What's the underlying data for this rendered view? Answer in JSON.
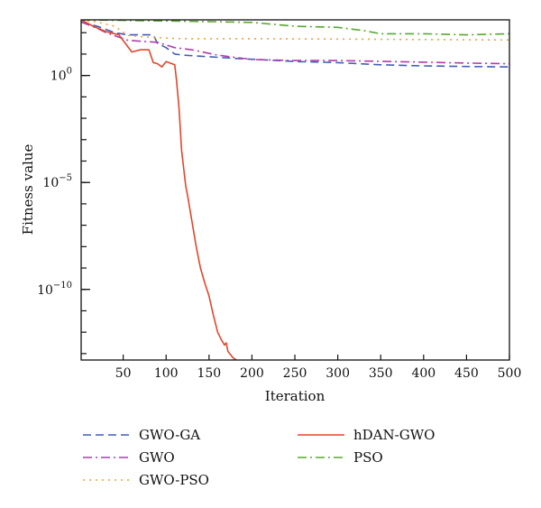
{
  "chart_data": {
    "type": "line",
    "xlabel": "Iteration",
    "ylabel": "Fitness value",
    "xlim": [
      1,
      500
    ],
    "ylim_log10": [
      -13.3,
      2.6
    ],
    "y_scale": "log",
    "grid": false,
    "legend_position": "bottom",
    "x_ticks": [
      50,
      100,
      150,
      200,
      250,
      300,
      350,
      400,
      450,
      500
    ],
    "x_tick_labels": [
      "50",
      "100",
      "150",
      "200",
      "250",
      "300",
      "350",
      "400",
      "450",
      "500"
    ],
    "y_ticks": [
      {
        "log10": 0,
        "base": "10",
        "exp": "0"
      },
      {
        "log10": -5,
        "base": "10",
        "exp": "−5"
      },
      {
        "log10": -10,
        "base": "10",
        "exp": "−10"
      }
    ],
    "series": [
      {
        "name": "GWO-GA",
        "color": "#3f5fb5",
        "dash": "9,5",
        "points_log10": [
          [
            1,
            2.5
          ],
          [
            20,
            2.3
          ],
          [
            40,
            2.0
          ],
          [
            55,
            1.9
          ],
          [
            85,
            1.9
          ],
          [
            90,
            1.5
          ],
          [
            100,
            1.3
          ],
          [
            110,
            1.0
          ],
          [
            120,
            0.95
          ],
          [
            140,
            0.9
          ],
          [
            160,
            0.85
          ],
          [
            180,
            0.8
          ],
          [
            220,
            0.72
          ],
          [
            250,
            0.65
          ],
          [
            300,
            0.6
          ],
          [
            350,
            0.5
          ],
          [
            400,
            0.45
          ],
          [
            450,
            0.42
          ],
          [
            500,
            0.4
          ]
        ]
      },
      {
        "name": "GWO",
        "color": "#b13dab",
        "dash": "10,4,2,4",
        "points_log10": [
          [
            1,
            2.5
          ],
          [
            20,
            2.2
          ],
          [
            30,
            2.0
          ],
          [
            55,
            1.65
          ],
          [
            70,
            1.6
          ],
          [
            90,
            1.55
          ],
          [
            110,
            1.3
          ],
          [
            130,
            1.2
          ],
          [
            160,
            0.95
          ],
          [
            200,
            0.75
          ],
          [
            250,
            0.7
          ],
          [
            300,
            0.7
          ],
          [
            350,
            0.66
          ],
          [
            400,
            0.62
          ],
          [
            450,
            0.58
          ],
          [
            500,
            0.55
          ]
        ]
      },
      {
        "name": "GWO-PSO",
        "color": "#f2a13a",
        "dash": "2,5",
        "points_log10": [
          [
            1,
            2.58
          ],
          [
            20,
            2.5
          ],
          [
            40,
            2.3
          ],
          [
            55,
            1.88
          ],
          [
            80,
            1.78
          ],
          [
            120,
            1.72
          ],
          [
            200,
            1.72
          ],
          [
            300,
            1.7
          ],
          [
            400,
            1.68
          ],
          [
            500,
            1.66
          ]
        ]
      },
      {
        "name": "hDAN-GWO",
        "color": "#e4452a",
        "dash": "",
        "points_log10": [
          [
            1,
            2.6
          ],
          [
            15,
            2.3
          ],
          [
            30,
            2.05
          ],
          [
            45,
            1.9
          ],
          [
            60,
            1.1
          ],
          [
            70,
            1.2
          ],
          [
            80,
            1.2
          ],
          [
            85,
            0.6
          ],
          [
            90,
            0.55
          ],
          [
            95,
            0.4
          ],
          [
            100,
            0.65
          ],
          [
            110,
            0.5
          ],
          [
            112,
            -0.2
          ],
          [
            115,
            -1.5
          ],
          [
            118,
            -3.5
          ],
          [
            120,
            -4.2
          ],
          [
            123,
            -5.2
          ],
          [
            125,
            -5.6
          ],
          [
            130,
            -6.8
          ],
          [
            135,
            -8.0
          ],
          [
            140,
            -9.0
          ],
          [
            145,
            -9.7
          ],
          [
            150,
            -10.3
          ],
          [
            155,
            -11.2
          ],
          [
            160,
            -12.0
          ],
          [
            165,
            -12.4
          ],
          [
            168,
            -12.6
          ],
          [
            170,
            -12.5
          ],
          [
            172,
            -12.9
          ],
          [
            178,
            -13.2
          ],
          [
            182,
            -13.3
          ]
        ]
      },
      {
        "name": "PSO",
        "color": "#5aa832",
        "dash": "10,4,2,4",
        "points_log10": [
          [
            1,
            2.6
          ],
          [
            100,
            2.55
          ],
          [
            200,
            2.48
          ],
          [
            250,
            2.3
          ],
          [
            300,
            2.25
          ],
          [
            330,
            2.1
          ],
          [
            350,
            1.95
          ],
          [
            400,
            1.95
          ],
          [
            450,
            1.9
          ],
          [
            500,
            1.95
          ]
        ]
      }
    ],
    "legend_columns": [
      [
        "GWO-GA",
        "GWO",
        "GWO-PSO"
      ],
      [
        "hDAN-GWO",
        "PSO"
      ]
    ]
  }
}
